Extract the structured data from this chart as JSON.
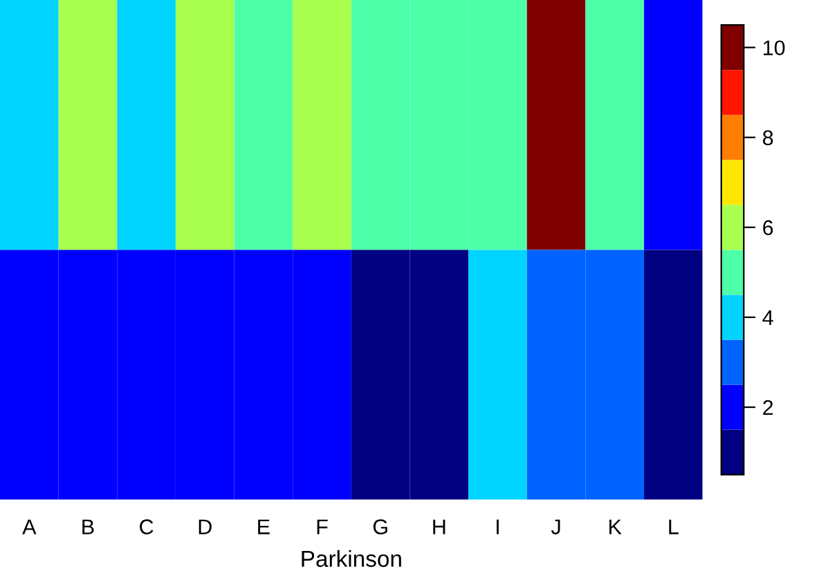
{
  "chart_data": {
    "type": "heatmap",
    "xlabel": "Parkinson",
    "categories": [
      "A",
      "B",
      "C",
      "D",
      "E",
      "F",
      "G",
      "H",
      "I",
      "J",
      "K",
      "L"
    ],
    "y_categories": [
      null,
      null
    ],
    "cells": [
      [
        4,
        6,
        4,
        6,
        5,
        6,
        5,
        5,
        5,
        10,
        5,
        2
      ],
      [
        2,
        2,
        2,
        2,
        2,
        2,
        1,
        1,
        4,
        3,
        3,
        1
      ]
    ],
    "clim": [
      0.5,
      10.5
    ],
    "cticks": [
      2,
      4,
      6,
      8,
      10
    ]
  }
}
